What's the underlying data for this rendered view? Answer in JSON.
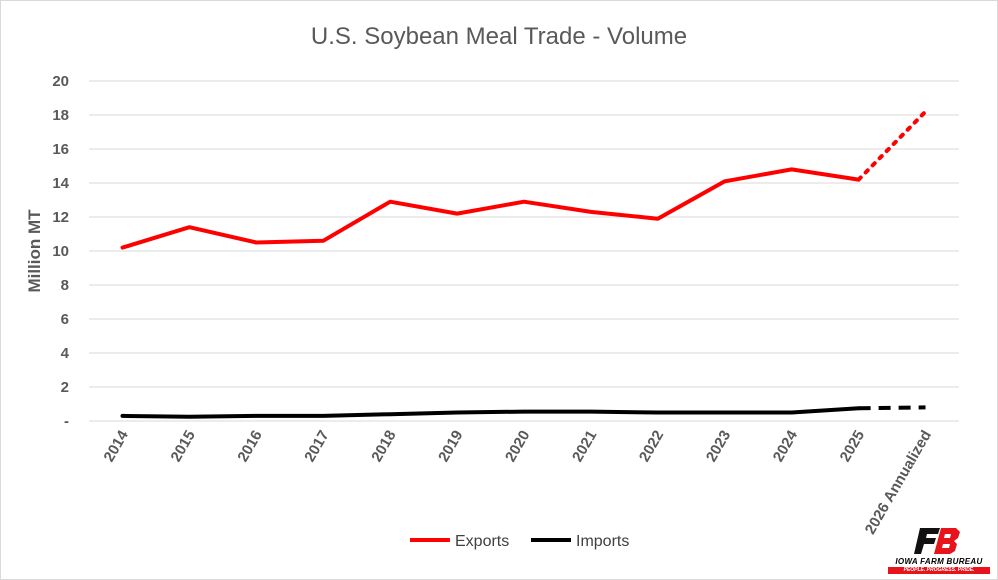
{
  "chart_data": {
    "type": "line",
    "title": "U.S. Soybean Meal Trade - Volume",
    "ylabel": "Million MT",
    "xlabel": "",
    "categories": [
      "2014",
      "2015",
      "2016",
      "2017",
      "2018",
      "2019",
      "2020",
      "2021",
      "2022",
      "2023",
      "2024",
      "2025",
      "2026 Annualized"
    ],
    "ylim": [
      0,
      20
    ],
    "yticks": [
      0,
      2,
      4,
      6,
      8,
      10,
      12,
      14,
      16,
      18,
      20
    ],
    "ytick_labels": [
      "-",
      "2",
      "4",
      "6",
      "8",
      "10",
      "12",
      "14",
      "16",
      "18",
      "20"
    ],
    "grid": "horizontal",
    "legend": "bottom-center",
    "series": [
      {
        "name": "Exports",
        "color": "#ff0000",
        "values": [
          10.2,
          11.4,
          10.5,
          10.6,
          12.9,
          12.2,
          12.9,
          12.3,
          11.9,
          14.1,
          14.8,
          14.2,
          18.2
        ],
        "projected_from_index": 11,
        "projected_style": "dotted"
      },
      {
        "name": "Imports",
        "color": "#000000",
        "values": [
          0.3,
          0.25,
          0.3,
          0.3,
          0.4,
          0.5,
          0.55,
          0.55,
          0.5,
          0.5,
          0.5,
          0.75,
          0.8
        ],
        "projected_from_index": 11,
        "projected_style": "dashed"
      }
    ]
  },
  "logo": {
    "name": "IOWA FARM BUREAU",
    "tagline": "PEOPLE. PROGRESS. PRIDE.",
    "mark_color": "#e8141c"
  }
}
